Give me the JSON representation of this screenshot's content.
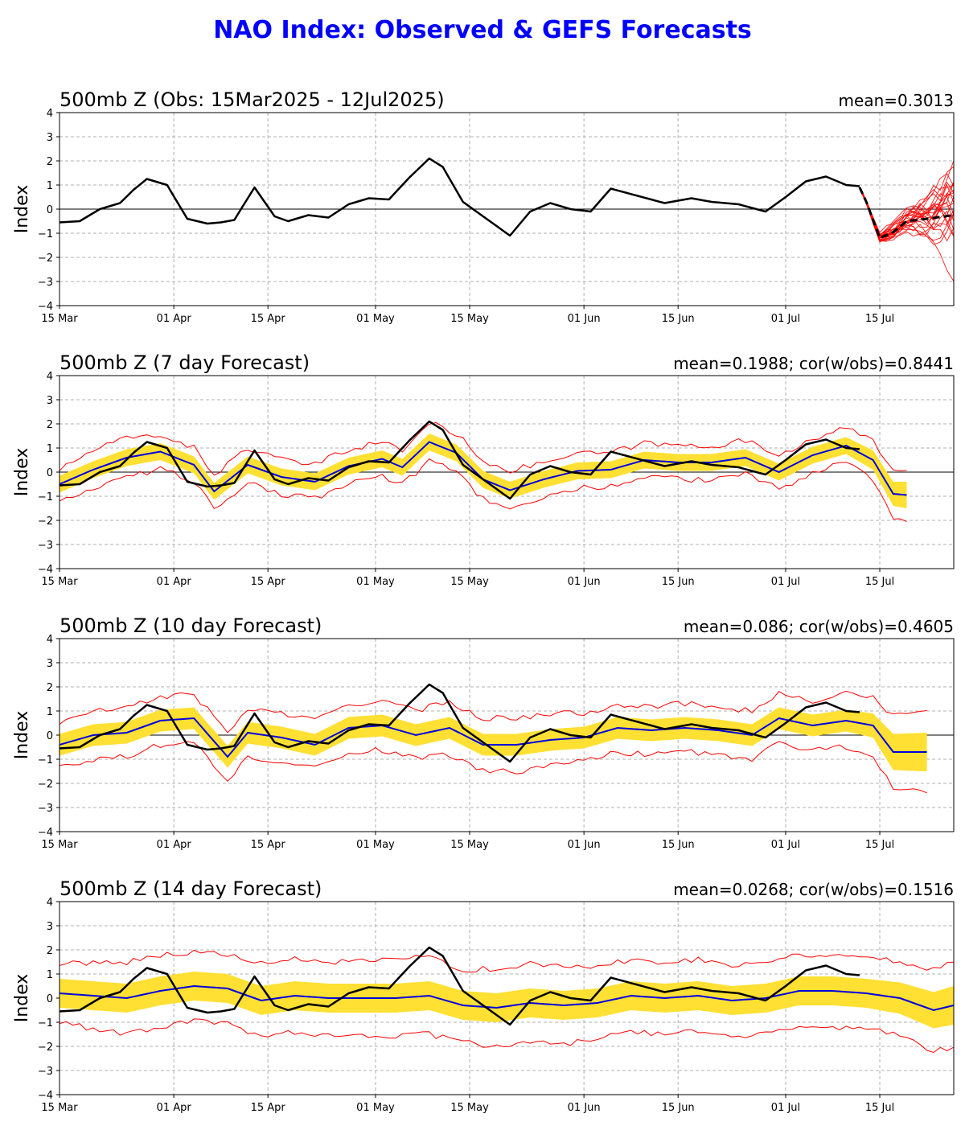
{
  "figure": {
    "title": "NAO Index: Observed & GEFS Forecasts"
  },
  "colors": {
    "title": "#0000ff",
    "observed": "#000000",
    "ensemble_mean": "#0000dd",
    "spread_band": "#ffe033",
    "range_lines": "#ff0000",
    "members": "#ff0000"
  },
  "chart_data": [
    {
      "type": "line",
      "title": "500mb Z (Obs: 15Mar2025 - 12Jul2025)",
      "stat": "mean=0.3013",
      "ylabel": "Index",
      "ylim": [
        -4,
        4
      ],
      "xlim": [
        "2025-03-15",
        "2025-07-26"
      ],
      "x_ticks": [
        "15 Mar",
        "01 Apr",
        "15 Apr",
        "01 May",
        "15 May",
        "01 Jun",
        "15 Jun",
        "01 Jul",
        "15 Jul"
      ],
      "y_ticks": [
        "4",
        "3",
        "2",
        "1",
        "0",
        "−1",
        "−2",
        "−3",
        "−4"
      ],
      "grid": true,
      "observed": {
        "x": [
          "2025-03-15",
          "2025-03-18",
          "2025-03-21",
          "2025-03-24",
          "2025-03-26",
          "2025-03-28",
          "2025-03-31",
          "2025-04-03",
          "2025-04-06",
          "2025-04-08",
          "2025-04-10",
          "2025-04-13",
          "2025-04-16",
          "2025-04-18",
          "2025-04-21",
          "2025-04-24",
          "2025-04-27",
          "2025-04-30",
          "2025-05-03",
          "2025-05-06",
          "2025-05-09",
          "2025-05-11",
          "2025-05-14",
          "2025-05-18",
          "2025-05-21",
          "2025-05-24",
          "2025-05-27",
          "2025-05-30",
          "2025-06-02",
          "2025-06-05",
          "2025-06-09",
          "2025-06-13",
          "2025-06-17",
          "2025-06-20",
          "2025-06-24",
          "2025-06-28",
          "2025-07-01",
          "2025-07-04",
          "2025-07-07",
          "2025-07-10",
          "2025-07-12"
        ],
        "y": [
          -0.55,
          -0.5,
          0.0,
          0.25,
          0.8,
          1.25,
          1.0,
          -0.4,
          -0.6,
          -0.55,
          -0.45,
          0.9,
          -0.3,
          -0.5,
          -0.25,
          -0.35,
          0.2,
          0.45,
          0.4,
          1.3,
          2.1,
          1.75,
          0.3,
          -0.5,
          -1.1,
          -0.1,
          0.25,
          0.0,
          -0.1,
          0.85,
          0.55,
          0.25,
          0.45,
          0.3,
          0.2,
          -0.1,
          0.5,
          1.15,
          1.35,
          1.0,
          0.95
        ]
      },
      "forecast_mean": {
        "x": [
          "2025-07-12",
          "2025-07-13",
          "2025-07-15",
          "2025-07-17",
          "2025-07-19",
          "2025-07-22",
          "2025-07-26"
        ],
        "y": [
          0.9,
          0.3,
          -1.2,
          -0.95,
          -0.5,
          -0.4,
          -0.25
        ]
      },
      "members_note": "GEFS ensemble members from 12 Jul"
    },
    {
      "type": "line",
      "title": "500mb Z (7 day Forecast)",
      "stat": "mean=0.1988; cor(w/obs)=0.8441",
      "ylabel": "Index",
      "ylim": [
        -4,
        4
      ],
      "xlim": [
        "2025-03-15",
        "2025-07-26"
      ],
      "x_ticks": [
        "15 Mar",
        "01 Apr",
        "15 Apr",
        "01 May",
        "15 May",
        "01 Jun",
        "15 Jun",
        "01 Jul",
        "15 Jul"
      ],
      "y_ticks": [
        "4",
        "3",
        "2",
        "1",
        "0",
        "−1",
        "−2",
        "−3",
        "−4"
      ],
      "grid": true,
      "forecast": {
        "x": [
          "2025-03-15",
          "2025-03-20",
          "2025-03-25",
          "2025-03-30",
          "2025-04-04",
          "2025-04-07",
          "2025-04-12",
          "2025-04-17",
          "2025-04-22",
          "2025-04-27",
          "2025-05-02",
          "2025-05-05",
          "2025-05-09",
          "2025-05-13",
          "2025-05-17",
          "2025-05-21",
          "2025-05-26",
          "2025-05-31",
          "2025-06-05",
          "2025-06-10",
          "2025-06-15",
          "2025-06-20",
          "2025-06-25",
          "2025-06-30",
          "2025-07-05",
          "2025-07-10",
          "2025-07-14",
          "2025-07-17",
          "2025-07-19"
        ],
        "mean": [
          -0.5,
          0.1,
          0.6,
          0.85,
          0.3,
          -0.8,
          0.3,
          -0.2,
          -0.4,
          0.25,
          0.55,
          0.2,
          1.25,
          0.8,
          -0.3,
          -0.75,
          -0.3,
          0.05,
          0.1,
          0.5,
          0.4,
          0.4,
          0.6,
          0.0,
          0.7,
          1.1,
          0.5,
          -0.9,
          -0.95
        ],
        "spread": [
          0.35,
          0.35,
          0.35,
          0.35,
          0.35,
          0.35,
          0.35,
          0.35,
          0.35,
          0.35,
          0.35,
          0.35,
          0.35,
          0.35,
          0.35,
          0.35,
          0.35,
          0.35,
          0.35,
          0.35,
          0.35,
          0.35,
          0.35,
          0.35,
          0.35,
          0.35,
          0.4,
          0.5,
          0.55
        ],
        "range": [
          0.6,
          0.8,
          0.8,
          0.7,
          0.7,
          0.7,
          0.7,
          0.7,
          0.7,
          0.7,
          0.7,
          0.7,
          0.8,
          0.8,
          0.8,
          0.8,
          0.7,
          0.7,
          0.7,
          0.7,
          0.7,
          0.7,
          0.7,
          0.7,
          0.7,
          0.7,
          0.8,
          1.0,
          1.1
        ]
      },
      "observed": {
        "x": [
          "2025-03-15",
          "2025-03-18",
          "2025-03-21",
          "2025-03-24",
          "2025-03-26",
          "2025-03-28",
          "2025-03-31",
          "2025-04-03",
          "2025-04-06",
          "2025-04-08",
          "2025-04-10",
          "2025-04-13",
          "2025-04-16",
          "2025-04-18",
          "2025-04-21",
          "2025-04-24",
          "2025-04-27",
          "2025-04-30",
          "2025-05-03",
          "2025-05-06",
          "2025-05-09",
          "2025-05-11",
          "2025-05-14",
          "2025-05-18",
          "2025-05-21",
          "2025-05-24",
          "2025-05-27",
          "2025-05-30",
          "2025-06-02",
          "2025-06-05",
          "2025-06-09",
          "2025-06-13",
          "2025-06-17",
          "2025-06-20",
          "2025-06-24",
          "2025-06-28",
          "2025-07-01",
          "2025-07-04",
          "2025-07-07",
          "2025-07-10",
          "2025-07-12"
        ],
        "y": [
          -0.55,
          -0.5,
          0.0,
          0.25,
          0.8,
          1.25,
          1.0,
          -0.4,
          -0.6,
          -0.55,
          -0.45,
          0.9,
          -0.3,
          -0.5,
          -0.25,
          -0.35,
          0.2,
          0.45,
          0.4,
          1.3,
          2.1,
          1.75,
          0.3,
          -0.5,
          -1.1,
          -0.1,
          0.25,
          0.0,
          -0.1,
          0.85,
          0.55,
          0.25,
          0.45,
          0.3,
          0.2,
          -0.1,
          0.5,
          1.15,
          1.35,
          1.0,
          0.95
        ]
      }
    },
    {
      "type": "line",
      "title": "500mb Z (10 day Forecast)",
      "stat": "mean=0.086; cor(w/obs)=0.4605",
      "ylabel": "Index",
      "ylim": [
        -4,
        4
      ],
      "xlim": [
        "2025-03-15",
        "2025-07-26"
      ],
      "x_ticks": [
        "15 Mar",
        "01 Apr",
        "15 Apr",
        "01 May",
        "15 May",
        "01 Jun",
        "15 Jun",
        "01 Jul",
        "15 Jul"
      ],
      "y_ticks": [
        "4",
        "3",
        "2",
        "1",
        "0",
        "−1",
        "−2",
        "−3",
        "−4"
      ],
      "grid": true,
      "forecast": {
        "x": [
          "2025-03-15",
          "2025-03-20",
          "2025-03-25",
          "2025-03-30",
          "2025-04-04",
          "2025-04-09",
          "2025-04-12",
          "2025-04-17",
          "2025-04-22",
          "2025-04-27",
          "2025-05-02",
          "2025-05-07",
          "2025-05-12",
          "2025-05-17",
          "2025-05-22",
          "2025-05-27",
          "2025-06-01",
          "2025-06-06",
          "2025-06-11",
          "2025-06-16",
          "2025-06-21",
          "2025-06-26",
          "2025-06-30",
          "2025-07-05",
          "2025-07-10",
          "2025-07-14",
          "2025-07-17",
          "2025-07-22"
        ],
        "mean": [
          -0.4,
          0.0,
          0.1,
          0.6,
          0.7,
          -0.9,
          0.1,
          -0.1,
          -0.4,
          0.3,
          0.4,
          0.0,
          0.3,
          -0.4,
          -0.4,
          -0.2,
          -0.1,
          0.3,
          0.2,
          0.3,
          0.2,
          0.0,
          0.7,
          0.4,
          0.6,
          0.4,
          -0.7,
          -0.7
        ],
        "spread": [
          0.45,
          0.45,
          0.45,
          0.45,
          0.45,
          0.45,
          0.45,
          0.45,
          0.45,
          0.45,
          0.45,
          0.45,
          0.45,
          0.45,
          0.45,
          0.45,
          0.45,
          0.45,
          0.45,
          0.45,
          0.45,
          0.45,
          0.45,
          0.45,
          0.45,
          0.5,
          0.75,
          0.8
        ],
        "range": [
          0.9,
          1.0,
          1.0,
          1.0,
          1.0,
          1.0,
          1.0,
          1.0,
          1.0,
          1.0,
          1.0,
          1.0,
          1.1,
          1.1,
          1.1,
          1.1,
          1.0,
          1.0,
          1.0,
          1.0,
          1.0,
          1.0,
          1.0,
          1.0,
          1.1,
          1.2,
          1.5,
          1.6
        ]
      },
      "observed": {
        "x": [
          "2025-03-15",
          "2025-03-18",
          "2025-03-21",
          "2025-03-24",
          "2025-03-26",
          "2025-03-28",
          "2025-03-31",
          "2025-04-03",
          "2025-04-06",
          "2025-04-08",
          "2025-04-10",
          "2025-04-13",
          "2025-04-16",
          "2025-04-18",
          "2025-04-21",
          "2025-04-24",
          "2025-04-27",
          "2025-04-30",
          "2025-05-03",
          "2025-05-06",
          "2025-05-09",
          "2025-05-11",
          "2025-05-14",
          "2025-05-18",
          "2025-05-21",
          "2025-05-24",
          "2025-05-27",
          "2025-05-30",
          "2025-06-02",
          "2025-06-05",
          "2025-06-09",
          "2025-06-13",
          "2025-06-17",
          "2025-06-20",
          "2025-06-24",
          "2025-06-28",
          "2025-07-01",
          "2025-07-04",
          "2025-07-07",
          "2025-07-10",
          "2025-07-12"
        ],
        "y": [
          -0.55,
          -0.5,
          0.0,
          0.25,
          0.8,
          1.25,
          1.0,
          -0.4,
          -0.6,
          -0.55,
          -0.45,
          0.9,
          -0.3,
          -0.5,
          -0.25,
          -0.35,
          0.2,
          0.45,
          0.4,
          1.3,
          2.1,
          1.75,
          0.3,
          -0.5,
          -1.1,
          -0.1,
          0.25,
          0.0,
          -0.1,
          0.85,
          0.55,
          0.25,
          0.45,
          0.3,
          0.2,
          -0.1,
          0.5,
          1.15,
          1.35,
          1.0,
          0.95
        ]
      }
    },
    {
      "type": "line",
      "title": "500mb Z (14 day Forecast)",
      "stat": "mean=0.0268; cor(w/obs)=0.1516",
      "ylabel": "Index",
      "ylim": [
        -4,
        4
      ],
      "xlim": [
        "2025-03-15",
        "2025-07-26"
      ],
      "x_ticks": [
        "15 Mar",
        "01 Apr",
        "15 Apr",
        "01 May",
        "15 May",
        "01 Jun",
        "15 Jun",
        "01 Jul",
        "15 Jul"
      ],
      "y_ticks": [
        "4",
        "3",
        "2",
        "1",
        "0",
        "−1",
        "−2",
        "−3",
        "−4"
      ],
      "grid": true,
      "forecast": {
        "x": [
          "2025-03-15",
          "2025-03-20",
          "2025-03-25",
          "2025-03-30",
          "2025-04-04",
          "2025-04-09",
          "2025-04-14",
          "2025-04-19",
          "2025-04-24",
          "2025-04-29",
          "2025-05-04",
          "2025-05-09",
          "2025-05-14",
          "2025-05-19",
          "2025-05-24",
          "2025-05-29",
          "2025-06-03",
          "2025-06-08",
          "2025-06-13",
          "2025-06-18",
          "2025-06-23",
          "2025-06-28",
          "2025-07-03",
          "2025-07-08",
          "2025-07-13",
          "2025-07-18",
          "2025-07-23",
          "2025-07-26"
        ],
        "mean": [
          0.2,
          0.1,
          0.0,
          0.3,
          0.5,
          0.4,
          -0.1,
          0.1,
          0.0,
          0.0,
          0.0,
          0.1,
          -0.3,
          -0.4,
          -0.2,
          -0.3,
          -0.2,
          0.1,
          0.0,
          0.1,
          -0.1,
          0.0,
          0.3,
          0.3,
          0.2,
          0.0,
          -0.5,
          -0.3
        ],
        "spread": [
          0.6,
          0.6,
          0.6,
          0.6,
          0.6,
          0.6,
          0.6,
          0.6,
          0.6,
          0.6,
          0.6,
          0.6,
          0.6,
          0.6,
          0.6,
          0.6,
          0.6,
          0.6,
          0.6,
          0.6,
          0.6,
          0.6,
          0.6,
          0.6,
          0.6,
          0.65,
          0.75,
          0.8
        ],
        "range": [
          1.2,
          1.4,
          1.5,
          1.5,
          1.4,
          1.4,
          1.5,
          1.5,
          1.5,
          1.5,
          1.6,
          1.6,
          1.5,
          1.6,
          1.6,
          1.6,
          1.5,
          1.5,
          1.5,
          1.5,
          1.5,
          1.5,
          1.5,
          1.5,
          1.5,
          1.5,
          1.7,
          1.8
        ]
      },
      "observed": {
        "x": [
          "2025-03-15",
          "2025-03-18",
          "2025-03-21",
          "2025-03-24",
          "2025-03-26",
          "2025-03-28",
          "2025-03-31",
          "2025-04-03",
          "2025-04-06",
          "2025-04-08",
          "2025-04-10",
          "2025-04-13",
          "2025-04-16",
          "2025-04-18",
          "2025-04-21",
          "2025-04-24",
          "2025-04-27",
          "2025-04-30",
          "2025-05-03",
          "2025-05-06",
          "2025-05-09",
          "2025-05-11",
          "2025-05-14",
          "2025-05-18",
          "2025-05-21",
          "2025-05-24",
          "2025-05-27",
          "2025-05-30",
          "2025-06-02",
          "2025-06-05",
          "2025-06-09",
          "2025-06-13",
          "2025-06-17",
          "2025-06-20",
          "2025-06-24",
          "2025-06-28",
          "2025-07-01",
          "2025-07-04",
          "2025-07-07",
          "2025-07-10",
          "2025-07-12"
        ],
        "y": [
          -0.55,
          -0.5,
          0.0,
          0.25,
          0.8,
          1.25,
          1.0,
          -0.4,
          -0.6,
          -0.55,
          -0.45,
          0.9,
          -0.3,
          -0.5,
          -0.25,
          -0.35,
          0.2,
          0.45,
          0.4,
          1.3,
          2.1,
          1.75,
          0.3,
          -0.5,
          -1.1,
          -0.1,
          0.25,
          0.0,
          -0.1,
          0.85,
          0.55,
          0.25,
          0.45,
          0.3,
          0.2,
          -0.1,
          0.5,
          1.15,
          1.35,
          1.0,
          0.95
        ]
      }
    }
  ]
}
